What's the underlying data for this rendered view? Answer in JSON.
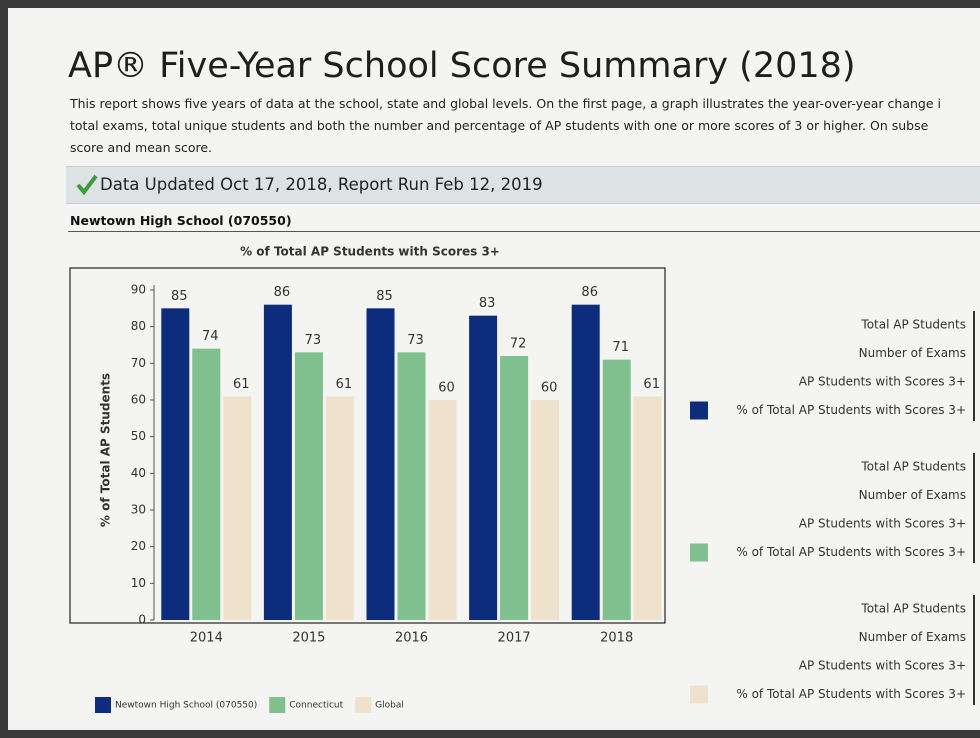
{
  "header": {
    "title": "AP® Five-Year School Score Summary (2018)",
    "description": [
      "This report shows five years of data at the school, state and global levels. On the first page, a graph illustrates the year-over-year change i",
      "total exams, total unique students and both the number and percentage of AP students with one or more scores of 3 or higher. On subse",
      "score and mean score."
    ],
    "updated": "Data Updated Oct 17, 2018,  Report Run Feb 12, 2019",
    "school": "Newtown High School (070550)"
  },
  "chart_data": {
    "type": "bar",
    "title": "% of Total AP Students with Scores 3+",
    "y_label": "% of Total AP Students",
    "categories": [
      "2014",
      "2015",
      "2016",
      "2017",
      "2018"
    ],
    "series": [
      {
        "name": "Newtown High School (070550)",
        "color": "#0e2c7c",
        "values": [
          85,
          86,
          85,
          83,
          86
        ]
      },
      {
        "name": "Connecticut",
        "color": "#80bf8e",
        "values": [
          74,
          73,
          73,
          72,
          71
        ]
      },
      {
        "name": "Global",
        "color": "#eee2cd",
        "values": [
          61,
          61,
          60,
          60,
          61
        ]
      }
    ],
    "ylim": [
      0,
      90
    ],
    "yticks": [
      0,
      10,
      20,
      30,
      40,
      50,
      60,
      70,
      80,
      90
    ]
  },
  "side_panels": [
    {
      "color": "#0e2c7c",
      "rows": [
        "Total AP Students",
        "Number of Exams",
        "AP Students with Scores 3+",
        "% of Total AP Students with Scores 3+"
      ]
    },
    {
      "color": "#80bf8e",
      "rows": [
        "Total AP Students",
        "Number of Exams",
        "AP Students with Scores 3+",
        "% of Total AP Students with Scores 3+"
      ]
    },
    {
      "color": "#eee2cd",
      "rows": [
        "Total AP Students",
        "Number of Exams",
        "AP Students with Scores 3+",
        "% of Total AP Students with Scores 3+"
      ]
    }
  ]
}
